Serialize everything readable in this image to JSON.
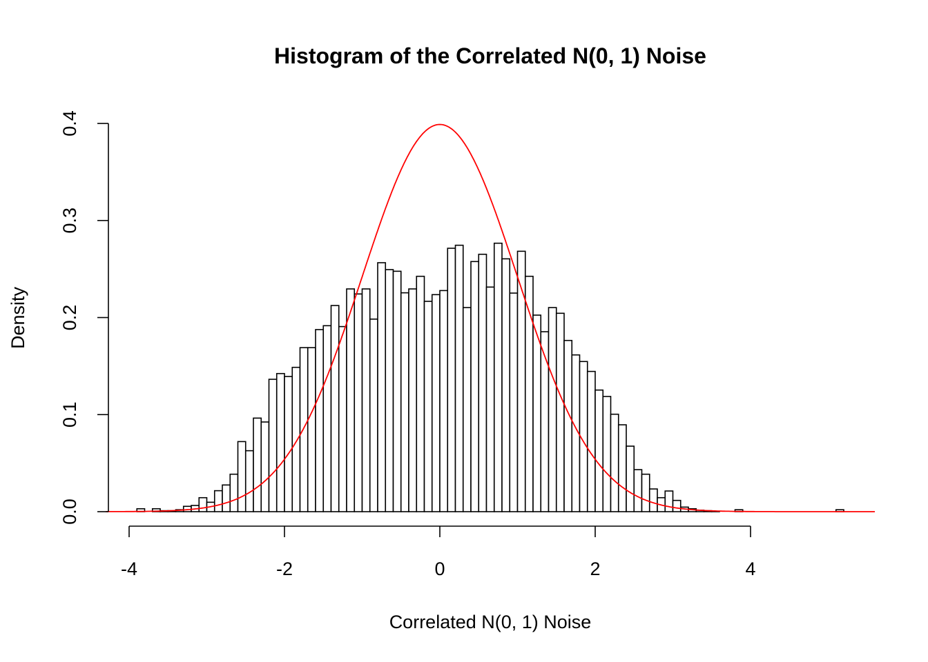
{
  "chart_data": {
    "type": "bar",
    "title": "Histogram of the Correlated N(0, 1) Noise",
    "xlabel": "Correlated N(0, 1) Noise",
    "ylabel": "Density",
    "xlim": [
      -4.3,
      5.6
    ],
    "ylim": [
      0,
      0.4
    ],
    "x_ticks": [
      "-4",
      "-2",
      "0",
      "2",
      "4"
    ],
    "y_ticks": [
      "0.0",
      "0.1",
      "0.2",
      "0.3",
      "0.4"
    ],
    "grid": false,
    "breaks_start": -3.9,
    "bin_width": 0.1,
    "density": [
      0.003,
      0,
      0.003,
      0.001,
      0.001,
      0.002,
      0.0055,
      0.0064,
      0.0144,
      0.0097,
      0.0216,
      0.0275,
      0.0386,
      0.0722,
      0.0628,
      0.0964,
      0.0924,
      0.1364,
      0.1423,
      0.1393,
      0.1487,
      0.169,
      0.169,
      0.1876,
      0.1916,
      0.2124,
      0.1907,
      0.2295,
      0.2243,
      0.2295,
      0.1984,
      0.2565,
      0.2494,
      0.2477,
      0.2255,
      0.2295,
      0.2425,
      0.2167,
      0.2236,
      0.2278,
      0.2714,
      0.2745,
      0.2103,
      0.2577,
      0.2652,
      0.2314,
      0.2766,
      0.2605,
      0.2252,
      0.2683,
      0.2425,
      0.2025,
      0.1854,
      0.2103,
      0.2044,
      0.1764,
      0.1615,
      0.1547,
      0.1445,
      0.1253,
      0.1187,
      0.1004,
      0.0895,
      0.0675,
      0.0433,
      0.0386,
      0.0234,
      0.0144,
      0.0213,
      0.0116,
      0.0047,
      0.003,
      0.0015,
      0.001,
      0.0005,
      0,
      0,
      0.002,
      0,
      0,
      0,
      0,
      0,
      0,
      0,
      0,
      0,
      0,
      0,
      0,
      0.002
    ],
    "bar_fill": "#ffffff",
    "bar_stroke": "#000000",
    "curve": {
      "type": "normal-density",
      "mean": 0,
      "sd": 1,
      "color": "#ff0000"
    }
  }
}
